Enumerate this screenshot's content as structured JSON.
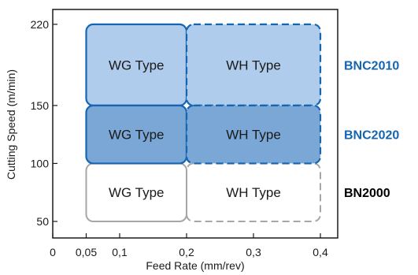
{
  "chart_data": {
    "type": "area",
    "xlabel": "Feed Rate (mm/rev)",
    "ylabel": "Cutting Speed (m/min)",
    "x_ticks": [
      {
        "value": 0,
        "label": "0"
      },
      {
        "value": 0.05,
        "label": "0,05"
      },
      {
        "value": 0.1,
        "label": "0,1"
      },
      {
        "value": 0.2,
        "label": "0,2"
      },
      {
        "value": 0.3,
        "label": "0,3"
      },
      {
        "value": 0.4,
        "label": "0,4"
      }
    ],
    "y_ticks": [
      {
        "value": 50,
        "label": "50"
      },
      {
        "value": 100,
        "label": "100"
      },
      {
        "value": 150,
        "label": "150"
      },
      {
        "value": 220,
        "label": "220"
      }
    ],
    "regions": [
      {
        "grade": "BN2000",
        "type": "WG Type",
        "x0": 0.05,
        "x1": 0.2,
        "y0": 50,
        "y1": 100,
        "style": "solid",
        "fill": "none",
        "stroke": "#a6a6a6"
      },
      {
        "grade": "BN2000",
        "type": "WH Type",
        "x0": 0.2,
        "x1": 0.4,
        "y0": 50,
        "y1": 100,
        "style": "dashed",
        "fill": "none",
        "stroke": "#a6a6a6"
      },
      {
        "grade": "BNC2010",
        "type": "WG Type",
        "x0": 0.05,
        "x1": 0.2,
        "y0": 150,
        "y1": 220,
        "style": "solid",
        "fill": "#a9c8ea",
        "stroke": "#1565b0"
      },
      {
        "grade": "BNC2010",
        "type": "WH Type",
        "x0": 0.2,
        "x1": 0.4,
        "y0": 150,
        "y1": 220,
        "style": "dashed",
        "fill": "#a9c8ea",
        "stroke": "#1565b0"
      },
      {
        "grade": "BNC2020",
        "type": "WG Type",
        "x0": 0.05,
        "x1": 0.2,
        "y0": 100,
        "y1": 150,
        "style": "solid",
        "fill": "#6f9fd2",
        "stroke": "#1565b0"
      },
      {
        "grade": "BNC2020",
        "type": "WH Type",
        "x0": 0.2,
        "x1": 0.4,
        "y0": 100,
        "y1": 150,
        "style": "dashed",
        "fill": "#6f9fd2",
        "stroke": "#1565b0"
      }
    ],
    "grade_labels": [
      {
        "text": "BNC2010",
        "y0": 150,
        "y1": 220,
        "color": "#1565b0"
      },
      {
        "text": "BNC2020",
        "y0": 100,
        "y1": 150,
        "color": "#1565b0"
      },
      {
        "text": "BN2000",
        "y0": 50,
        "y1": 100,
        "color": "#000000"
      }
    ],
    "grid": false,
    "legend": "none"
  }
}
